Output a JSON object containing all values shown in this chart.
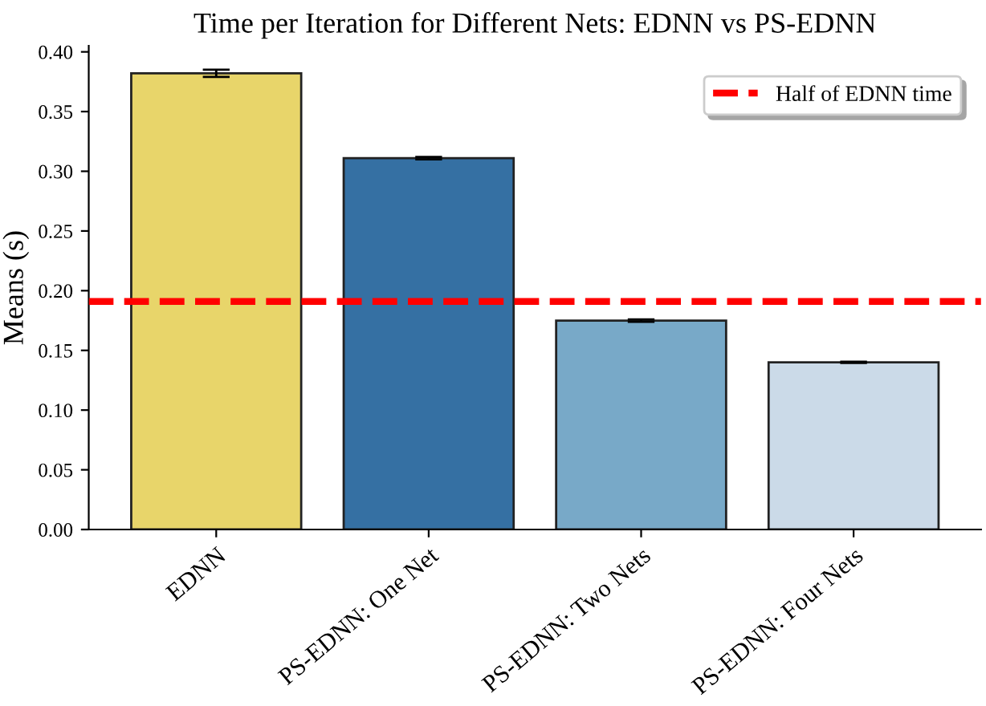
{
  "chart_data": {
    "type": "bar",
    "title": "Time per Iteration for Different Nets: EDNN vs PS-EDNN",
    "ylabel": "Means (s)",
    "categories": [
      "EDNN",
      "PS-EDNN: One Net",
      "PS-EDNN: Two Nets",
      "PS-EDNN: Four Nets"
    ],
    "values": [
      0.382,
      0.311,
      0.175,
      0.14
    ],
    "errors": [
      0.003,
      0.001,
      0.001,
      0.0005
    ],
    "colors": [
      "#e8d56a",
      "#3570a3",
      "#78a9c8",
      "#cbdae8"
    ],
    "ylim": [
      0,
      0.405
    ],
    "yticks": [
      {
        "value": 0,
        "label": "0.00"
      },
      {
        "value": 0.05,
        "label": "0.05"
      },
      {
        "value": 0.1,
        "label": "0.10"
      },
      {
        "value": 0.15,
        "label": "0.15"
      },
      {
        "value": 0.2,
        "label": "0.20"
      },
      {
        "value": 0.25,
        "label": "0.25"
      },
      {
        "value": 0.3,
        "label": "0.30"
      },
      {
        "value": 0.35,
        "label": "0.35"
      },
      {
        "value": 0.4,
        "label": "0.40"
      }
    ],
    "ref_lines": [
      {
        "axis": "y",
        "value": 0.191,
        "label": "Half of EDNN time",
        "color": "#ff0000",
        "line_style": "dashed"
      }
    ],
    "legend": "top right",
    "grid": false
  }
}
